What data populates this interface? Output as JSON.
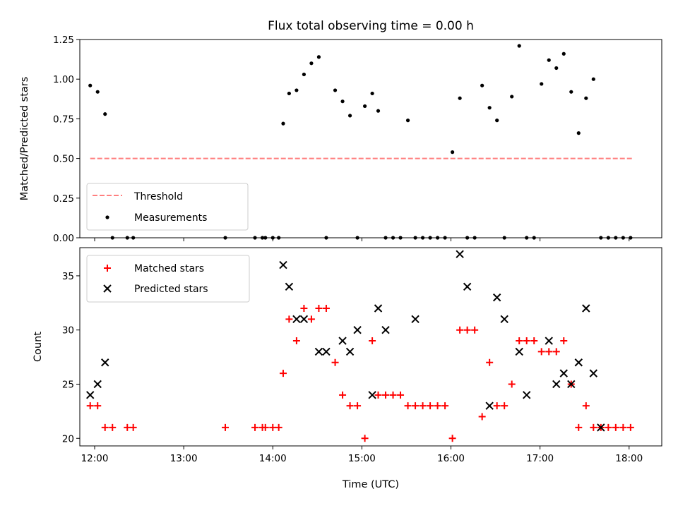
{
  "title": "Flux total observing time = 0.00 h",
  "colors": {
    "threshold": "#ff7f7f",
    "measurements": "#000000",
    "matched": "#ff0000",
    "predicted": "#000000"
  },
  "chart_data": [
    {
      "type": "scatter",
      "ylabel": "Matched/Predicted stars",
      "xlim": [
        "11:50",
        "18:22"
      ],
      "ylim": [
        0,
        1.25
      ],
      "yticks": [
        0.0,
        0.25,
        0.5,
        0.75,
        1.0,
        1.25
      ],
      "ytick_labels": [
        "0.00",
        "0.25",
        "0.50",
        "0.75",
        "1.00",
        "1.25"
      ],
      "legend": {
        "placement": "lower-left",
        "entries": [
          "Threshold",
          "Measurements"
        ]
      },
      "threshold": {
        "name": "Threshold",
        "y": 0.5,
        "x_start": "11:57",
        "x_end": "18:02"
      },
      "series": [
        {
          "name": "Measurements",
          "x": [
            "11:57",
            "12:02",
            "12:07",
            "12:12",
            "12:22",
            "12:26",
            "13:28",
            "13:48",
            "13:53",
            "13:55",
            "14:00",
            "14:04",
            "14:07",
            "14:11",
            "14:16",
            "14:21",
            "14:26",
            "14:31",
            "14:36",
            "14:42",
            "14:47",
            "14:52",
            "14:57",
            "15:02",
            "15:07",
            "15:11",
            "15:16",
            "15:21",
            "15:26",
            "15:31",
            "15:36",
            "15:41",
            "15:46",
            "15:51",
            "15:56",
            "16:01",
            "16:06",
            "16:11",
            "16:16",
            "16:21",
            "16:26",
            "16:31",
            "16:36",
            "16:41",
            "16:46",
            "16:51",
            "16:56",
            "17:01",
            "17:06",
            "17:11",
            "17:16",
            "17:21",
            "17:26",
            "17:31",
            "17:36",
            "17:41",
            "17:46",
            "17:51",
            "17:56",
            "18:01"
          ],
          "y": [
            0.96,
            0.92,
            0.78,
            0,
            0,
            0,
            0,
            0,
            0,
            0,
            0,
            0,
            0.72,
            0.91,
            0.93,
            1.03,
            1.1,
            1.14,
            0,
            0.93,
            0.86,
            0.77,
            0,
            0.83,
            0.91,
            0.8,
            0,
            0,
            0,
            0.74,
            0,
            0,
            0,
            0,
            0,
            0.54,
            0.88,
            0,
            0,
            0.96,
            0.82,
            0.74,
            0,
            0.89,
            1.21,
            0,
            0,
            0.97,
            1.12,
            1.07,
            1.16,
            0.92,
            0.66,
            0.88,
            1.0,
            0,
            0,
            0,
            0,
            0
          ]
        }
      ]
    },
    {
      "type": "scatter",
      "xlabel": "Time (UTC)",
      "ylabel": "Count",
      "xlim": [
        "11:50",
        "18:22"
      ],
      "xticks": [
        "12:00",
        "13:00",
        "14:00",
        "15:00",
        "16:00",
        "17:00",
        "18:00"
      ],
      "ylim": [
        19.3,
        37.6
      ],
      "yticks": [
        20,
        25,
        30,
        35
      ],
      "legend": {
        "placement": "upper-left",
        "entries": [
          "Matched stars",
          "Predicted stars"
        ]
      },
      "series": [
        {
          "name": "Matched stars",
          "x": [
            "11:57",
            "12:02",
            "12:07",
            "12:12",
            "12:22",
            "12:26",
            "13:28",
            "13:48",
            "13:53",
            "13:55",
            "14:00",
            "14:04",
            "14:07",
            "14:11",
            "14:16",
            "14:21",
            "14:26",
            "14:31",
            "14:36",
            "14:42",
            "14:47",
            "14:52",
            "14:57",
            "15:02",
            "15:07",
            "15:11",
            "15:16",
            "15:21",
            "15:26",
            "15:31",
            "15:36",
            "15:41",
            "15:46",
            "15:51",
            "15:56",
            "16:01",
            "16:06",
            "16:11",
            "16:16",
            "16:21",
            "16:26",
            "16:31",
            "16:36",
            "16:41",
            "16:46",
            "16:51",
            "16:56",
            "17:01",
            "17:06",
            "17:11",
            "17:16",
            "17:21",
            "17:26",
            "17:31",
            "17:36",
            "17:41",
            "17:46",
            "17:51",
            "17:56",
            "18:01"
          ],
          "y": [
            23,
            23,
            21,
            21,
            21,
            21,
            21,
            21,
            21,
            21,
            21,
            21,
            26,
            31,
            29,
            32,
            31,
            32,
            32,
            27,
            24,
            23,
            23,
            20,
            29,
            24,
            24,
            24,
            24,
            23,
            23,
            23,
            23,
            23,
            23,
            20,
            30,
            30,
            30,
            22,
            27,
            23,
            23,
            25,
            29,
            29,
            29,
            28,
            28,
            28,
            29,
            25,
            21,
            23,
            21,
            21,
            21,
            21,
            21,
            21
          ]
        },
        {
          "name": "Predicted stars",
          "x": [
            "11:57",
            "12:02",
            "12:07",
            "14:07",
            "14:11",
            "14:16",
            "14:21",
            "14:31",
            "14:36",
            "14:47",
            "14:52",
            "14:57",
            "15:07",
            "15:11",
            "15:16",
            "15:36",
            "16:06",
            "16:11",
            "16:26",
            "16:31",
            "16:36",
            "16:46",
            "16:51",
            "17:06",
            "17:11",
            "17:16",
            "17:21",
            "17:26",
            "17:31",
            "17:36",
            "17:41"
          ],
          "y": [
            24,
            25,
            27,
            36,
            34,
            31,
            31,
            28,
            28,
            29,
            28,
            30,
            24,
            32,
            30,
            31,
            37,
            34,
            23,
            33,
            31,
            28,
            24,
            29,
            25,
            26,
            25,
            27,
            32,
            26,
            21
          ]
        }
      ]
    }
  ]
}
